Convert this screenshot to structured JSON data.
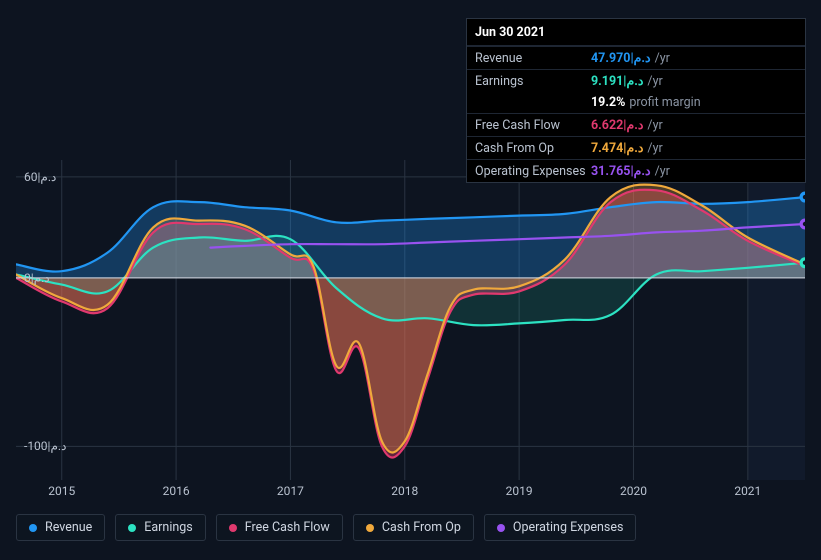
{
  "chart": {
    "type": "area",
    "background_color": "#0d1420",
    "plot_right_shade": "#121b2c",
    "grid_color": "#2a3442",
    "zero_line_color": "#d2d8e2",
    "x_categories": [
      "2015",
      "2016",
      "2017",
      "2018",
      "2019",
      "2020",
      "2021"
    ],
    "y_ticks": [
      {
        "value": 60,
        "label": "60|د.م"
      },
      {
        "value": 0,
        "label": "0|د.م"
      },
      {
        "value": -100,
        "label": "-100|د.م"
      }
    ],
    "ylim": [
      -120,
      70
    ],
    "font_size_axis": 12,
    "font_size_legend": 12.5,
    "marker_x": "2021.5",
    "series": [
      {
        "id": "revenue",
        "label": "Revenue",
        "color": "#2196f3",
        "fill_opacity": 0.3,
        "data": [
          [
            2014.6,
            8
          ],
          [
            2015.0,
            4
          ],
          [
            2015.4,
            15
          ],
          [
            2015.8,
            42
          ],
          [
            2016.2,
            45
          ],
          [
            2016.6,
            42
          ],
          [
            2017.0,
            40
          ],
          [
            2017.4,
            33
          ],
          [
            2017.8,
            34
          ],
          [
            2018.2,
            35
          ],
          [
            2018.6,
            36
          ],
          [
            2019.0,
            37
          ],
          [
            2019.4,
            38
          ],
          [
            2019.8,
            42
          ],
          [
            2020.2,
            45
          ],
          [
            2020.6,
            44
          ],
          [
            2021.0,
            45
          ],
          [
            2021.5,
            48
          ]
        ]
      },
      {
        "id": "earnings",
        "label": "Earnings",
        "color": "#2ce2c2",
        "fill_opacity": 0.14,
        "data": [
          [
            2014.6,
            2
          ],
          [
            2015.0,
            -4
          ],
          [
            2015.4,
            -8
          ],
          [
            2015.8,
            18
          ],
          [
            2016.2,
            24
          ],
          [
            2016.6,
            22
          ],
          [
            2017.0,
            23
          ],
          [
            2017.4,
            -6
          ],
          [
            2017.8,
            -24
          ],
          [
            2018.2,
            -24
          ],
          [
            2018.6,
            -28
          ],
          [
            2019.0,
            -27
          ],
          [
            2019.4,
            -25
          ],
          [
            2019.8,
            -22
          ],
          [
            2020.2,
            2
          ],
          [
            2020.6,
            4
          ],
          [
            2021.0,
            6
          ],
          [
            2021.5,
            9
          ]
        ]
      },
      {
        "id": "free_cash_flow",
        "label": "Free Cash Flow",
        "color": "#e0396e",
        "fill_opacity": 0.4,
        "data": [
          [
            2014.6,
            0
          ],
          [
            2015.0,
            -14
          ],
          [
            2015.4,
            -18
          ],
          [
            2015.8,
            27
          ],
          [
            2016.2,
            32
          ],
          [
            2016.6,
            29
          ],
          [
            2017.0,
            12
          ],
          [
            2017.2,
            5
          ],
          [
            2017.4,
            -55
          ],
          [
            2017.6,
            -42
          ],
          [
            2017.8,
            -100
          ],
          [
            2018.0,
            -100
          ],
          [
            2018.2,
            -60
          ],
          [
            2018.4,
            -20
          ],
          [
            2018.6,
            -10
          ],
          [
            2019.0,
            -8
          ],
          [
            2019.4,
            8
          ],
          [
            2019.8,
            45
          ],
          [
            2020.2,
            52
          ],
          [
            2020.6,
            40
          ],
          [
            2021.0,
            22
          ],
          [
            2021.5,
            7
          ]
        ]
      },
      {
        "id": "cash_from_op",
        "label": "Cash From Op",
        "color": "#f0a93c",
        "fill_opacity": 0.28,
        "data": [
          [
            2014.6,
            2
          ],
          [
            2015.0,
            -12
          ],
          [
            2015.4,
            -16
          ],
          [
            2015.8,
            30
          ],
          [
            2016.2,
            34
          ],
          [
            2016.6,
            31
          ],
          [
            2017.0,
            14
          ],
          [
            2017.2,
            7
          ],
          [
            2017.4,
            -52
          ],
          [
            2017.6,
            -39
          ],
          [
            2017.8,
            -97
          ],
          [
            2018.0,
            -97
          ],
          [
            2018.2,
            -57
          ],
          [
            2018.4,
            -17
          ],
          [
            2018.6,
            -7
          ],
          [
            2019.0,
            -5
          ],
          [
            2019.4,
            11
          ],
          [
            2019.8,
            48
          ],
          [
            2020.2,
            55
          ],
          [
            2020.6,
            43
          ],
          [
            2021.0,
            24
          ],
          [
            2021.5,
            8
          ]
        ]
      },
      {
        "id": "operating_expenses",
        "label": "Operating Expenses",
        "color": "#9852f0",
        "fill_opacity": 0.0,
        "data": [
          [
            2016.3,
            18
          ],
          [
            2016.6,
            19
          ],
          [
            2017.0,
            20
          ],
          [
            2017.4,
            20
          ],
          [
            2017.8,
            20
          ],
          [
            2018.2,
            21
          ],
          [
            2018.6,
            22
          ],
          [
            2019.0,
            23
          ],
          [
            2019.4,
            24
          ],
          [
            2019.8,
            25
          ],
          [
            2020.2,
            27
          ],
          [
            2020.6,
            28
          ],
          [
            2021.0,
            30
          ],
          [
            2021.5,
            32
          ]
        ]
      }
    ],
    "end_markers": [
      {
        "series": "revenue",
        "color": "#2196f3"
      },
      {
        "series": "operating_expenses",
        "color": "#9852f0"
      },
      {
        "series": "earnings",
        "color": "#2ce2c2"
      }
    ]
  },
  "tooltip": {
    "title": "Jun 30 2021",
    "unit_suffix": "/yr",
    "currency_code": "|د.م",
    "rows": [
      {
        "id": "revenue",
        "label": "Revenue",
        "value": "47.970|د.م",
        "unit": "/yr",
        "color": "#2196f3"
      },
      {
        "id": "earnings",
        "label": "Earnings",
        "value": "9.191|د.م",
        "unit": "/yr",
        "color": "#2ce2c2"
      },
      {
        "id": "margin",
        "label": "",
        "value": "19.2%",
        "unit": "profit margin",
        "color": "#ffffff"
      },
      {
        "id": "free_cash_flow",
        "label": "Free Cash Flow",
        "value": "6.622|د.م",
        "unit": "/yr",
        "color": "#e0396e"
      },
      {
        "id": "cash_from_op",
        "label": "Cash From Op",
        "value": "7.474|د.م",
        "unit": "/yr",
        "color": "#f0a93c"
      },
      {
        "id": "operating_expenses",
        "label": "Operating Expenses",
        "value": "31.765|د.م",
        "unit": "/yr",
        "color": "#9852f0"
      }
    ]
  },
  "legend": {
    "items": [
      {
        "id": "revenue",
        "label": "Revenue",
        "color": "#2196f3"
      },
      {
        "id": "earnings",
        "label": "Earnings",
        "color": "#2ce2c2"
      },
      {
        "id": "free_cash_flow",
        "label": "Free Cash Flow",
        "color": "#e0396e"
      },
      {
        "id": "cash_from_op",
        "label": "Cash From Op",
        "color": "#f0a93c"
      },
      {
        "id": "operating_expenses",
        "label": "Operating Expenses",
        "color": "#9852f0"
      }
    ]
  }
}
